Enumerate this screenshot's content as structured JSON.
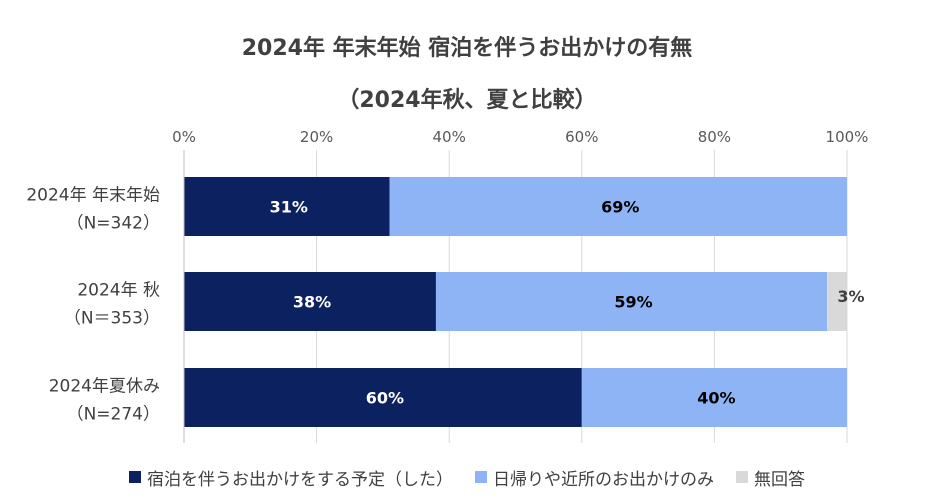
{
  "chart_data": {
    "type": "bar",
    "orientation": "horizontal",
    "stacked": true,
    "title": "2024年 年末年始 宿泊を伴うお出かけの有無",
    "subtitle": "（2024年秋、夏と比較）",
    "categories": [
      {
        "line1": "2024年 年末年始",
        "line2": "（N=342）"
      },
      {
        "line1": "2024年 秋",
        "line2": "（N＝353）"
      },
      {
        "line1": "2024年夏休み",
        "line2": "（N=274）"
      }
    ],
    "series": [
      {
        "name": "宿泊を伴うお出かけをする予定（した）",
        "color": "#0b2160",
        "label_color": "#ffffff",
        "values": [
          31,
          38,
          60
        ],
        "labels": [
          "31%",
          "38%",
          "60%"
        ]
      },
      {
        "name": "日帰りや近所のお出かけのみ",
        "color": "#8eb4f5",
        "label_color": "#000000",
        "values": [
          69,
          59,
          40
        ],
        "labels": [
          "69%",
          "59%",
          "40%"
        ]
      },
      {
        "name": "無回答",
        "color": "#d9d9d9",
        "label_color": "#404040",
        "values": [
          0,
          3,
          0
        ],
        "labels": [
          "",
          "3%",
          ""
        ]
      }
    ],
    "xlim": [
      0,
      100
    ],
    "xticks": [
      0,
      20,
      40,
      60,
      80,
      100
    ],
    "xtick_labels": [
      "0%",
      "20%",
      "40%",
      "60%",
      "80%",
      "100%"
    ],
    "xaxis_position": "top",
    "grid": true,
    "legend_position": "bottom"
  }
}
